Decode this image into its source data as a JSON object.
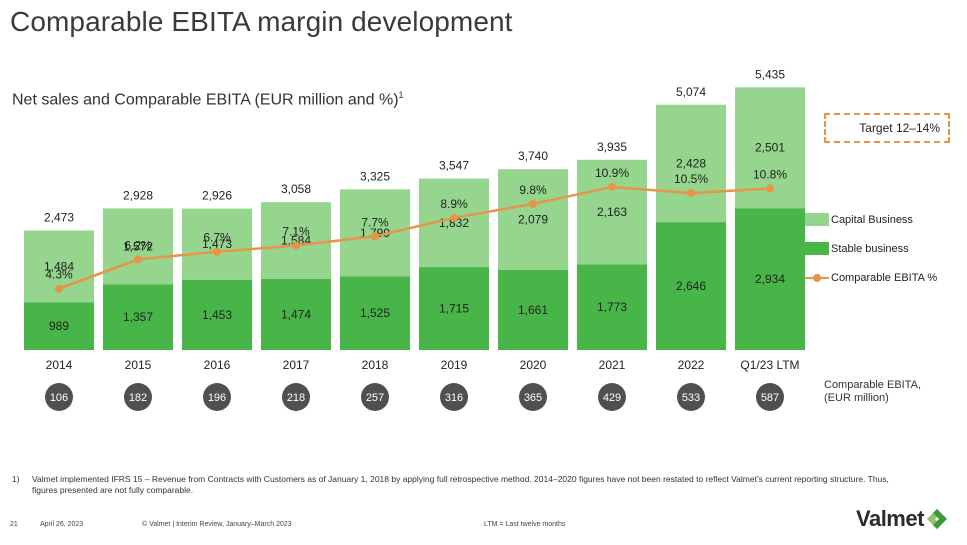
{
  "title": "Comparable EBITA margin development",
  "subtitle": "Net sales and Comparable EBITA (EUR million and %)",
  "subtitle_sup": "1",
  "target_label": "Target 12–14%",
  "legend": {
    "capital": "Capital Business",
    "stable": "Stable business",
    "ebita": "Comparable EBITA %"
  },
  "ebita_caption": [
    "Comparable EBITA,",
    "(EUR million)"
  ],
  "footnote_num": "1)",
  "footnote": "Valmet implemented IFRS 15 – Revenue from Contracts with Customers as of January 1, 2018 by applying full retrospective method. 2014–2020 figures have not been restated to reflect Valmet’s current reporting structure. Thus, figures presented are not fully comparable.",
  "footer": {
    "page": "21",
    "date": "April 26, 2023",
    "copyright": "© Valmet   | Interim Review, January–March 2023",
    "ltm_note": "LTM = Last twelve months"
  },
  "logo_text": "Valmet",
  "colors": {
    "capital": "#95d58d",
    "stable": "#48b548",
    "ebita_line": "#e8934a",
    "circle": "#505050",
    "title": "#3a3a3a"
  },
  "chart_data": {
    "type": "bar",
    "stacked": true,
    "categories": [
      "2014",
      "2015",
      "2016",
      "2017",
      "2018",
      "2019",
      "2020",
      "2021",
      "2022",
      "Q1/23 LTM"
    ],
    "series": [
      {
        "name": "Stable business",
        "values": [
          989,
          1357,
          1453,
          1474,
          1525,
          1715,
          1661,
          1773,
          2646,
          2934
        ],
        "labels": [
          "989",
          "1,357",
          "1,453",
          "1,474",
          "1,525",
          "1,715",
          "1,661",
          "1,773",
          "2,646",
          "2,934"
        ]
      },
      {
        "name": "Capital Business",
        "values": [
          1484,
          1572,
          1473,
          1584,
          1799,
          1832,
          2079,
          2163,
          2428,
          2501
        ],
        "labels": [
          "1,484",
          "1,572",
          "1,473",
          "1,584",
          "1,799",
          "1,832",
          "2,079",
          "2,163",
          "2,428",
          "2,501"
        ]
      }
    ],
    "totals": [
      2473,
      2928,
      2926,
      3058,
      3325,
      3547,
      3740,
      3935,
      5074,
      5435
    ],
    "total_labels": [
      "2,473",
      "2,928",
      "2,926",
      "3,058",
      "3,325",
      "3,547",
      "3,740",
      "3,935",
      "5,074",
      "5,435"
    ],
    "line": {
      "name": "Comparable EBITA %",
      "values": [
        4.3,
        6.2,
        6.7,
        7.1,
        7.7,
        8.9,
        9.8,
        10.9,
        10.5,
        10.8
      ],
      "labels": [
        "4.3%",
        "6.2%",
        "6.7%",
        "7.1%",
        "7.7%",
        "8.9%",
        "9.8%",
        "10.9%",
        "10.5%",
        "10.8%"
      ]
    },
    "ebita_eur_million": [
      "106",
      "182",
      "196",
      "218",
      "257",
      "316",
      "365",
      "429",
      "533",
      "587"
    ],
    "ylim": [
      0,
      6000
    ],
    "legend_position": "right"
  }
}
